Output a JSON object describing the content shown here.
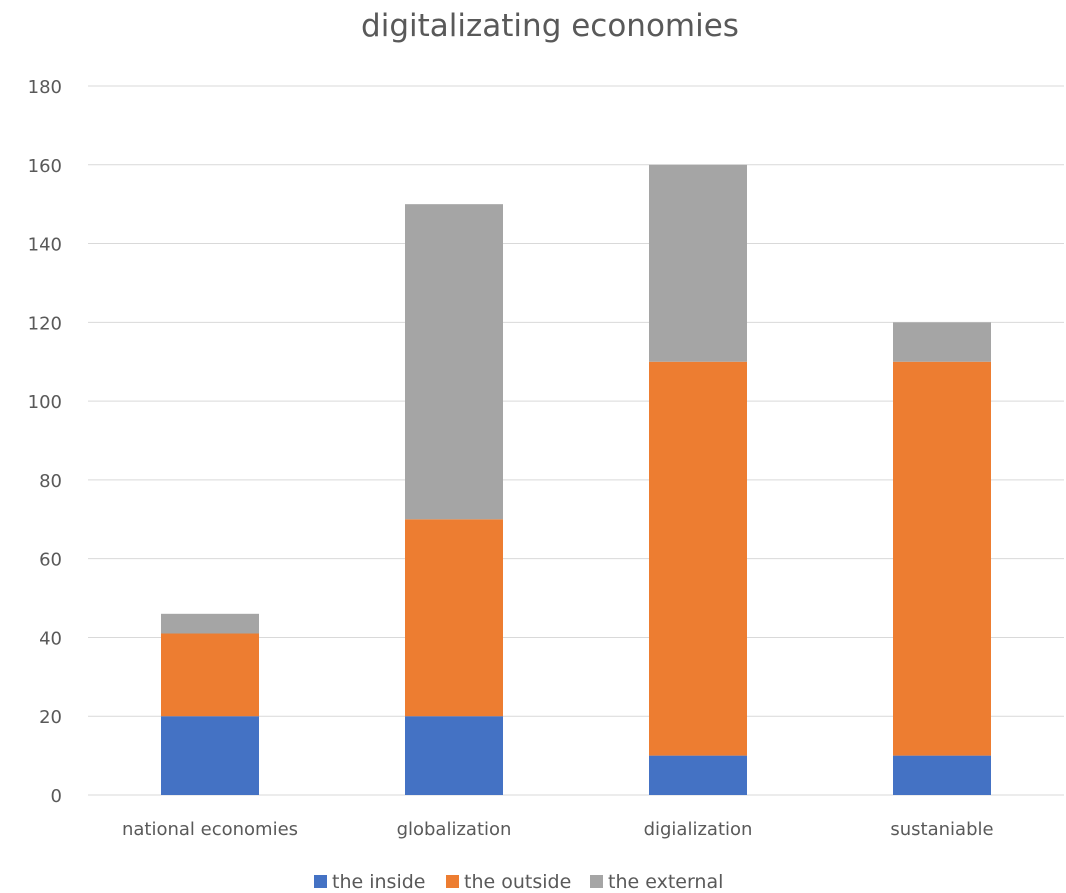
{
  "chart_data": {
    "type": "bar",
    "stacked": true,
    "title": "digitalizating economies",
    "xlabel": "",
    "ylabel": "",
    "categories": [
      "national economies",
      "globalization",
      "digialization",
      "sustaniable"
    ],
    "series": [
      {
        "name": "the inside",
        "color": "#4472C4",
        "values": [
          20,
          20,
          10,
          10
        ]
      },
      {
        "name": "the outside",
        "color": "#ED7D31",
        "values": [
          21,
          50,
          100,
          100
        ]
      },
      {
        "name": "the external",
        "color": "#A5A5A5",
        "values": [
          5,
          80,
          50,
          10
        ]
      }
    ],
    "ylim": [
      0,
      180
    ],
    "yticks": [
      0,
      20,
      40,
      60,
      80,
      100,
      120,
      140,
      160,
      180
    ],
    "grid": true,
    "legend_position": "bottom"
  }
}
